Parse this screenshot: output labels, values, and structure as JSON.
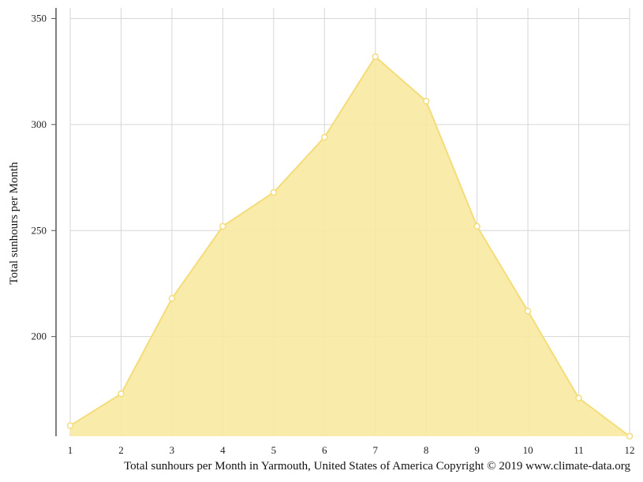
{
  "chart_data": {
    "type": "area",
    "x": [
      1,
      2,
      3,
      4,
      5,
      6,
      7,
      8,
      9,
      10,
      11,
      12
    ],
    "values": [
      158,
      173,
      218,
      252,
      268,
      294,
      332,
      311,
      252,
      212,
      171,
      153
    ],
    "xlabel": "",
    "ylabel": "Total sunhours per Month",
    "ylim": [
      153,
      355
    ],
    "yticks": [
      200,
      250,
      300,
      350
    ],
    "grid": true,
    "colors": {
      "fill": "#f8e9a1",
      "line": "#f5dc7a",
      "marker_fill": "#ffffff",
      "grid": "#d6d6d6",
      "axis": "#555555"
    }
  },
  "caption": "Total sunhours per Month in Yarmouth, United States of America Copyright © 2019 www.climate-data.org"
}
